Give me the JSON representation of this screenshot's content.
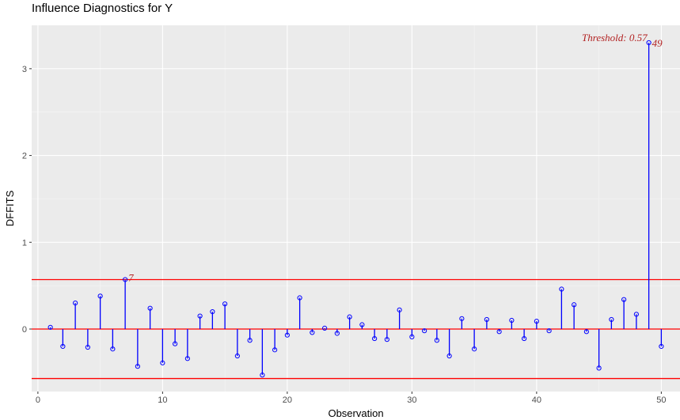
{
  "chart_data": {
    "type": "scatter",
    "title": "Influence Diagnostics for Y",
    "xlabel": "Observation",
    "ylabel": "DFFITS",
    "xlim": [
      -0.5,
      51.5
    ],
    "ylim": [
      -0.72,
      3.5
    ],
    "x_ticks": [
      0,
      10,
      20,
      30,
      40,
      50
    ],
    "y_ticks": [
      0,
      1,
      2,
      3
    ],
    "grid": true,
    "threshold": 0.57,
    "threshold_label": "Threshold: 0.57",
    "colors": {
      "panel_bg": "#ebebeb",
      "grid_major": "#ffffff",
      "stem": "#0000ff",
      "threshold_line": "#ff0000",
      "annotation": "#b22222"
    },
    "x": [
      1,
      2,
      3,
      4,
      5,
      6,
      7,
      8,
      9,
      10,
      11,
      12,
      13,
      14,
      15,
      16,
      17,
      18,
      19,
      20,
      21,
      22,
      23,
      24,
      25,
      26,
      27,
      28,
      29,
      30,
      31,
      32,
      33,
      34,
      35,
      36,
      37,
      38,
      39,
      40,
      41,
      42,
      43,
      44,
      45,
      46,
      47,
      48,
      49,
      50
    ],
    "values": [
      0.02,
      -0.2,
      0.3,
      -0.21,
      0.38,
      -0.23,
      0.57,
      -0.43,
      0.24,
      -0.39,
      -0.17,
      -0.34,
      0.15,
      0.2,
      0.29,
      -0.31,
      -0.13,
      -0.53,
      -0.24,
      -0.07,
      0.36,
      -0.04,
      0.01,
      -0.05,
      0.14,
      0.05,
      -0.11,
      -0.12,
      0.22,
      -0.09,
      -0.02,
      -0.13,
      -0.31,
      0.12,
      -0.23,
      0.11,
      -0.03,
      0.1,
      -0.11,
      0.09,
      -0.02,
      0.46,
      0.28,
      -0.03,
      -0.45,
      0.11,
      0.34,
      0.17,
      3.3,
      -0.2
    ],
    "labeled_points": [
      {
        "x": 7,
        "label": "7"
      },
      {
        "x": 49,
        "label": "49"
      }
    ]
  }
}
